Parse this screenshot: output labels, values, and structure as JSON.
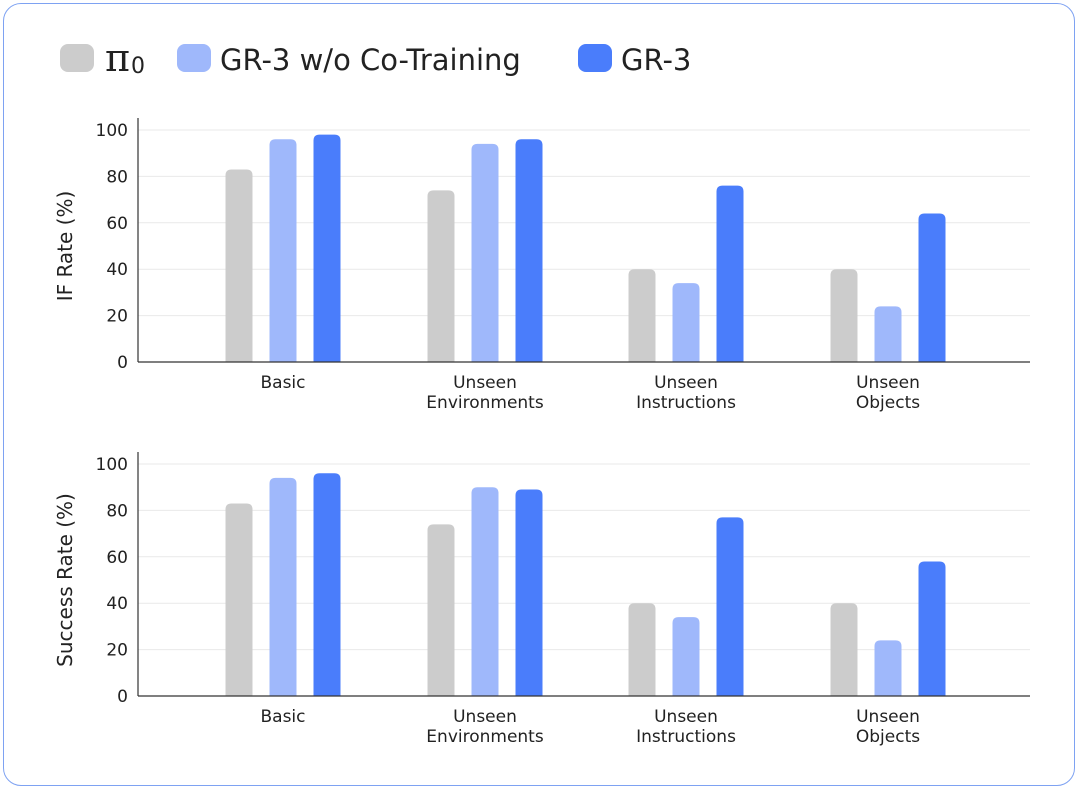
{
  "legend": {
    "items": [
      {
        "symbol": "π",
        "subscript": "0",
        "label": "",
        "color": "#cccccc"
      },
      {
        "symbol": "",
        "subscript": "",
        "label": "GR-3 w/o Co-Training",
        "color": "#9fb8fb"
      },
      {
        "symbol": "",
        "subscript": "",
        "label": "GR-3",
        "color": "#4a7dfb"
      }
    ]
  },
  "chart_data": [
    {
      "type": "bar",
      "categories": [
        [
          "Basic"
        ],
        [
          "Unseen",
          "Environments"
        ],
        [
          "Unseen",
          "Instructions"
        ],
        [
          "Unseen",
          "Objects"
        ]
      ],
      "series": [
        {
          "name": "π0",
          "color": "#cccccc",
          "values": [
            83,
            74,
            40,
            40
          ]
        },
        {
          "name": "GR-3 w/o Co-Training",
          "color": "#9fb8fb",
          "values": [
            96,
            94,
            34,
            24
          ]
        },
        {
          "name": "GR-3",
          "color": "#4a7dfb",
          "values": [
            98,
            96,
            76,
            64
          ]
        }
      ],
      "ylabel": "IF Rate (%)",
      "ylim": [
        0,
        100
      ],
      "yticks": [
        0,
        20,
        40,
        60,
        80,
        100
      ],
      "grid": true,
      "legend": "top-left"
    },
    {
      "type": "bar",
      "categories": [
        [
          "Basic"
        ],
        [
          "Unseen",
          "Environments"
        ],
        [
          "Unseen",
          "Instructions"
        ],
        [
          "Unseen",
          "Objects"
        ]
      ],
      "series": [
        {
          "name": "π0",
          "color": "#cccccc",
          "values": [
            83,
            74,
            40,
            40
          ]
        },
        {
          "name": "GR-3 w/o Co-Training",
          "color": "#9fb8fb",
          "values": [
            94,
            90,
            34,
            24
          ]
        },
        {
          "name": "GR-3",
          "color": "#4a7dfb",
          "values": [
            96,
            89,
            77,
            58
          ]
        }
      ],
      "ylabel": "Success Rate (%)",
      "ylim": [
        0,
        100
      ],
      "yticks": [
        0,
        20,
        40,
        60,
        80,
        100
      ],
      "grid": true,
      "legend": "top-left"
    }
  ]
}
